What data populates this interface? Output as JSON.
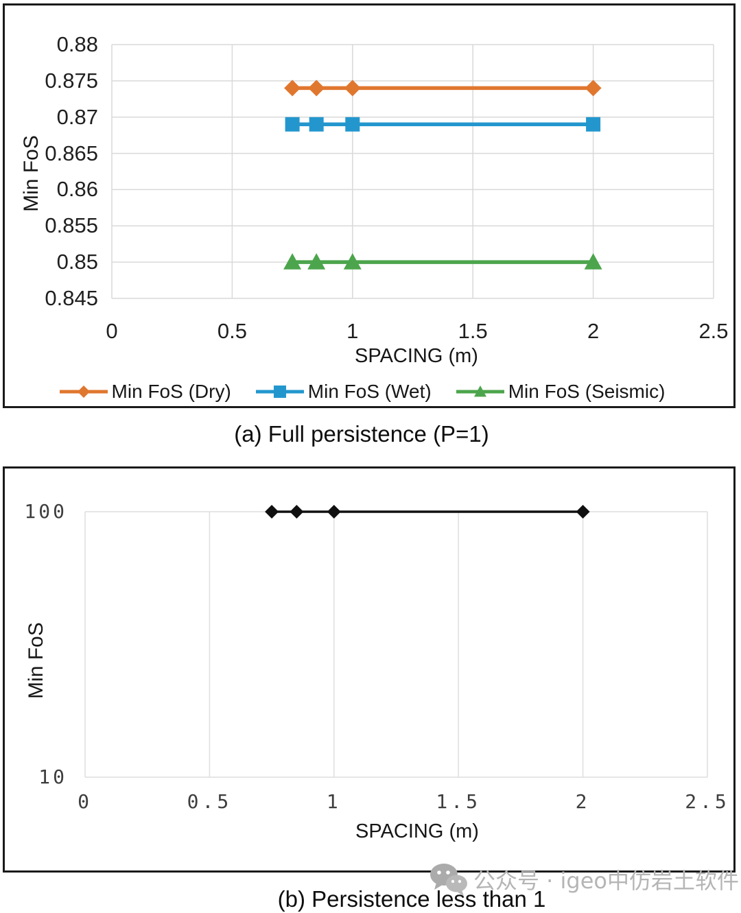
{
  "figure": {
    "panel_a_caption": "(a) Full persistence (P=1)",
    "panel_b_caption": "(b) Persistence less than 1",
    "watermark": {
      "icon": "wechat-icon",
      "text": "公众号 · igeo中仿岩土软件",
      "color": "#b5b5b5"
    }
  },
  "chart_data": [
    {
      "id": "a",
      "type": "line",
      "title": "(a) Full persistence (P=1)",
      "xlabel": "SPACING (m)",
      "ylabel": "Min FoS",
      "x": [
        0.75,
        0.85,
        1,
        2
      ],
      "series": [
        {
          "name": "Min FoS (Dry)",
          "marker": "diamond",
          "color": "#E0772F",
          "values": [
            0.874,
            0.874,
            0.874,
            0.874
          ]
        },
        {
          "name": "Min FoS (Wet)",
          "marker": "square",
          "color": "#2397CD",
          "values": [
            0.869,
            0.869,
            0.869,
            0.869
          ]
        },
        {
          "name": "Min FoS (Seismic)",
          "marker": "triangle",
          "color": "#4CA54C",
          "values": [
            0.85,
            0.85,
            0.85,
            0.85
          ]
        }
      ],
      "xlim": [
        0,
        2.5
      ],
      "ylim": [
        0.845,
        0.88
      ],
      "xticks": [
        0,
        0.5,
        1,
        1.5,
        2,
        2.5
      ],
      "xtick_labels": [
        "0",
        "0.5",
        "1",
        "1.5",
        "2",
        "2.5"
      ],
      "yticks": [
        0.88,
        0.875,
        0.87,
        0.865,
        0.86,
        0.855,
        0.85,
        0.845
      ],
      "ytick_labels": [
        "0.88",
        "0.875",
        "0.87",
        "0.865",
        "0.86",
        "0.855",
        "0.85",
        "0.845"
      ],
      "yscale": "linear",
      "grid": true,
      "legend_position": "bottom"
    },
    {
      "id": "b",
      "type": "line",
      "title": "(b) Persistence less than 1",
      "xlabel": "SPACING (m)",
      "ylabel": "Min FoS",
      "x": [
        0.75,
        0.85,
        1,
        2
      ],
      "series": [
        {
          "name": "Min FoS",
          "marker": "diamond",
          "color": "#101010",
          "values": [
            100,
            100,
            100,
            100
          ]
        }
      ],
      "xlim": [
        0,
        2.5
      ],
      "ylim": [
        10,
        100
      ],
      "xticks": [
        0,
        0.5,
        1,
        1.5,
        2,
        2.5
      ],
      "xtick_labels": [
        "0",
        "0.5",
        "1",
        "1.5",
        "2",
        "2.5"
      ],
      "yticks": [
        100,
        10
      ],
      "ytick_labels": [
        "100",
        "10"
      ],
      "yscale": "log",
      "grid": true,
      "legend_position": "none"
    }
  ]
}
